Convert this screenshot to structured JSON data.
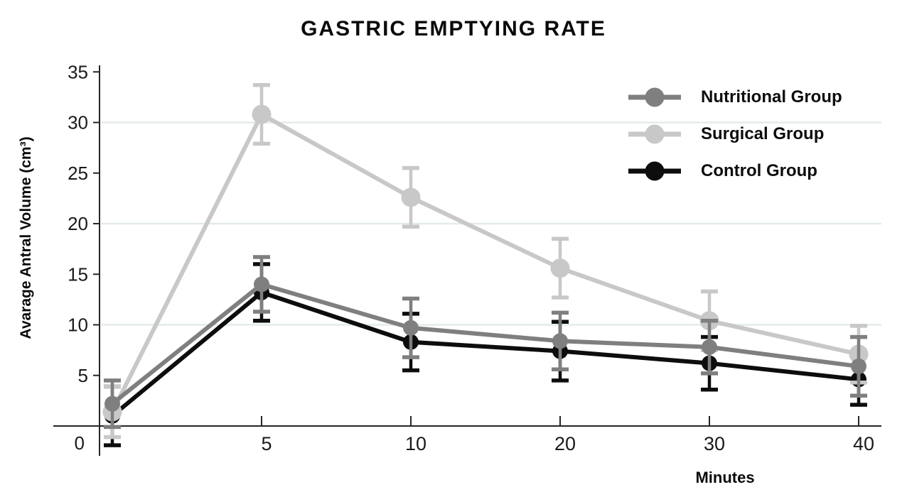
{
  "chart_data": {
    "type": "line",
    "title": "GASTRIC EMPTYING RATE",
    "xlabel": "Minutes",
    "ylabel": "Avarage Antral Volume (cm³)",
    "categories": [
      "",
      "5",
      "10",
      "20",
      "30",
      "40"
    ],
    "y_ticks": [
      0,
      5,
      10,
      15,
      20,
      25,
      30,
      35
    ],
    "ylim": [
      0,
      35
    ],
    "gridlines_at": [
      10,
      20,
      30
    ],
    "grid": "faint horizontal",
    "legend_position": "top-right",
    "error_bars": true,
    "series": [
      {
        "name": "Nutritional Group",
        "color": "#7f7f7f",
        "values": [
          2.2,
          14.0,
          9.7,
          8.4,
          7.8,
          5.9
        ],
        "errors": [
          2.3,
          2.7,
          2.9,
          2.8,
          2.6,
          2.9
        ]
      },
      {
        "name": "Surgical Group",
        "color": "#c8c8c8",
        "values": [
          1.4,
          30.8,
          22.6,
          15.6,
          10.4,
          7.1
        ],
        "errors": [
          2.5,
          2.9,
          2.9,
          2.9,
          2.9,
          2.8
        ]
      },
      {
        "name": "Control Group",
        "color": "#0d0d0d",
        "values": [
          1.0,
          13.2,
          8.3,
          7.4,
          6.2,
          4.6
        ],
        "errors": [
          2.9,
          2.8,
          2.8,
          2.9,
          2.6,
          2.5
        ]
      }
    ],
    "colors": {
      "axis": "#262626",
      "gridline": "#e3ebea",
      "text": "#1a1a1a"
    }
  }
}
